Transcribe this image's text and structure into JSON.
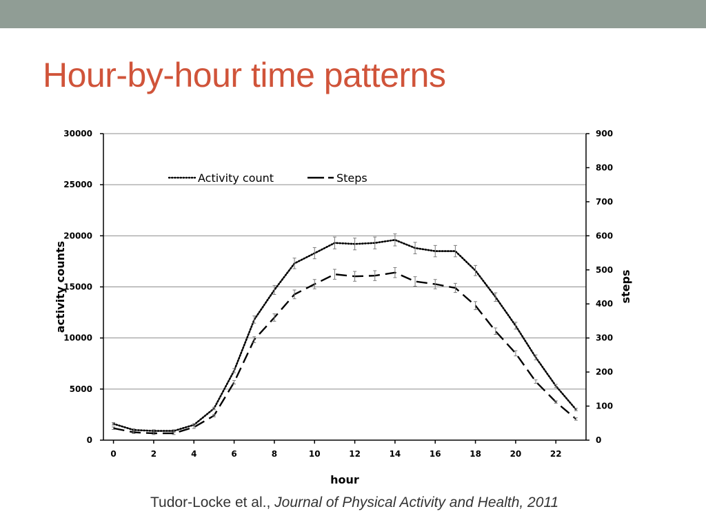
{
  "slide": {
    "title": "Hour-by-hour time patterns",
    "citation_authors": "Tudor-Locke et al., ",
    "citation_journal": "Journal of Physical Activity and Health, 2011",
    "colors": {
      "band": "#909d95",
      "title": "#d0543a",
      "text": "#333333"
    }
  },
  "chart_data": {
    "type": "line",
    "x": [
      0,
      1,
      2,
      3,
      4,
      5,
      6,
      7,
      8,
      9,
      10,
      11,
      12,
      13,
      14,
      15,
      16,
      17,
      18,
      19,
      20,
      21,
      22,
      23
    ],
    "series": [
      {
        "name": "Activity count",
        "axis": "left",
        "style": "dotted",
        "values": [
          1600,
          1000,
          900,
          900,
          1500,
          3100,
          6800,
          11800,
          14700,
          17300,
          18300,
          19300,
          19200,
          19300,
          19600,
          18800,
          18500,
          18500,
          16600,
          14000,
          11200,
          8100,
          5300,
          3000
        ]
      },
      {
        "name": "Steps",
        "axis": "right",
        "style": "dashed",
        "values": [
          35,
          23,
          20,
          20,
          38,
          72,
          170,
          295,
          360,
          428,
          458,
          487,
          481,
          483,
          492,
          466,
          458,
          447,
          395,
          320,
          255,
          172,
          112,
          62
        ]
      }
    ],
    "xlabel": "hour",
    "ylabel_left": "activity counts",
    "ylabel_right": "steps",
    "ylim_left": [
      0,
      30000
    ],
    "ylim_right": [
      0,
      900
    ],
    "xlim": [
      -0.5,
      23.5
    ],
    "x_ticks": [
      0,
      2,
      4,
      6,
      8,
      10,
      12,
      14,
      16,
      18,
      20,
      22
    ],
    "y_ticks_left": [
      0,
      5000,
      10000,
      15000,
      20000,
      25000,
      30000
    ],
    "y_ticks_right": [
      0,
      100,
      200,
      300,
      400,
      500,
      600,
      700,
      800,
      900
    ],
    "grid": "horizontal",
    "legend_position": "top",
    "error_bars": true
  }
}
